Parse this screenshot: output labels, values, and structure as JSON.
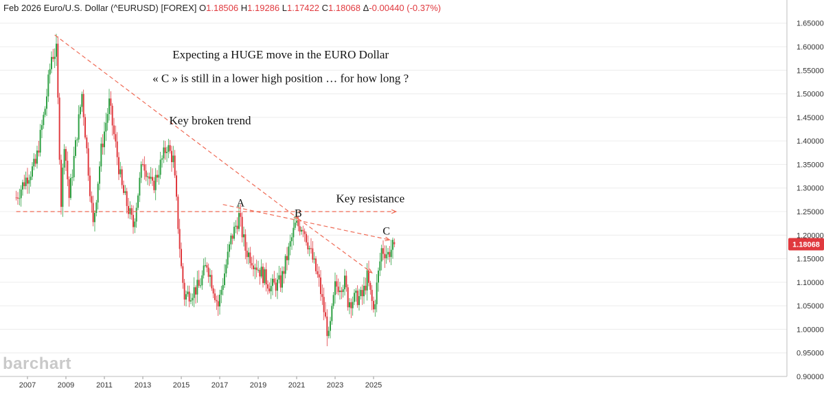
{
  "header": {
    "period": "Feb 2026",
    "symbol": "Euro/U.S. Dollar (^EURUSD) [FOREX]",
    "open_label": "O",
    "open": "1.18506",
    "high_label": "H",
    "high": "1.19286",
    "low_label": "L",
    "low": "1.17422",
    "close_label": "C",
    "close": "1.18068",
    "change_label": "Δ",
    "change": "-0.00440 (-0.37%)"
  },
  "watermark": "barchart",
  "colors": {
    "up": "#2ea043",
    "down": "#e0393e",
    "trend": "#ef6a55",
    "grid": "#ececec",
    "badge": "#e0393e"
  },
  "chart_data": {
    "type": "candlestick",
    "title": "Euro/U.S. Dollar (^EURUSD) [FOREX]",
    "timeframe": "monthly",
    "x_range": [
      "2006-06",
      "2026-02"
    ],
    "ylim": [
      0.9,
      1.67
    ],
    "y_ticks": [
      "1.65000",
      "1.60000",
      "1.55000",
      "1.50000",
      "1.45000",
      "1.40000",
      "1.35000",
      "1.30000",
      "1.25000",
      "1.20000",
      "1.15000",
      "1.10000",
      "1.05000",
      "1.00000",
      "0.95000",
      "0.90000"
    ],
    "y_tick_values": [
      1.65,
      1.6,
      1.55,
      1.5,
      1.45,
      1.4,
      1.35,
      1.3,
      1.25,
      1.2,
      1.15,
      1.1,
      1.05,
      1.0,
      0.95,
      0.9
    ],
    "x_ticks": [
      "2007",
      "2009",
      "2011",
      "2013",
      "2015",
      "2017",
      "2019",
      "2021",
      "2023",
      "2025"
    ],
    "x_tick_dates": [
      "2007-01",
      "2009-01",
      "2011-01",
      "2013-01",
      "2015-01",
      "2017-01",
      "2019-01",
      "2021-01",
      "2023-01",
      "2025-01"
    ],
    "last_price": "1.18068",
    "price_path": [
      [
        "2006-06",
        1.28
      ],
      [
        "2006-12",
        1.32
      ],
      [
        "2007-06",
        1.35
      ],
      [
        "2007-12",
        1.47
      ],
      [
        "2008-04",
        1.58
      ],
      [
        "2008-07",
        1.59
      ],
      [
        "2008-10",
        1.27
      ],
      [
        "2008-12",
        1.4
      ],
      [
        "2009-03",
        1.28
      ],
      [
        "2009-11",
        1.5
      ],
      [
        "2010-06",
        1.22
      ],
      [
        "2010-11",
        1.38
      ],
      [
        "2011-04",
        1.48
      ],
      [
        "2011-12",
        1.3
      ],
      [
        "2012-07",
        1.22
      ],
      [
        "2013-01",
        1.36
      ],
      [
        "2013-07",
        1.3
      ],
      [
        "2014-04",
        1.39
      ],
      [
        "2014-08",
        1.36
      ],
      [
        "2015-01",
        1.13
      ],
      [
        "2015-03",
        1.07
      ],
      [
        "2015-12",
        1.09
      ],
      [
        "2016-05",
        1.14
      ],
      [
        "2016-12",
        1.05
      ],
      [
        "2017-08",
        1.19
      ],
      [
        "2018-01",
        1.24
      ],
      [
        "2018-05",
        1.17
      ],
      [
        "2019-09",
        1.09
      ],
      [
        "2020-03",
        1.1
      ],
      [
        "2020-12",
        1.22
      ],
      [
        "2021-05",
        1.22
      ],
      [
        "2022-03",
        1.1
      ],
      [
        "2022-09",
        0.98
      ],
      [
        "2023-01",
        1.09
      ],
      [
        "2023-07",
        1.1
      ],
      [
        "2023-09",
        1.06
      ],
      [
        "2024-06",
        1.07
      ],
      [
        "2024-09",
        1.11
      ],
      [
        "2025-01",
        1.04
      ],
      [
        "2025-06",
        1.17
      ],
      [
        "2025-10",
        1.16
      ],
      [
        "2026-02",
        1.18
      ]
    ],
    "trendlines": [
      {
        "type": "dashed",
        "from": [
          "2008-06",
          1.625
        ],
        "to": [
          "2021-02",
          1.235
        ]
      },
      {
        "type": "dashed",
        "from": [
          "2021-02",
          1.235
        ],
        "to": [
          "2024-12",
          1.12
        ]
      },
      {
        "type": "dashed",
        "from": [
          "2017-03",
          1.265
        ],
        "to": [
          "2025-11",
          1.19
        ]
      },
      {
        "type": "dashed",
        "from": [
          "2006-06",
          1.25
        ],
        "to": [
          "2026-03",
          1.25
        ]
      }
    ],
    "point_labels": [
      {
        "text": "A",
        "date": "2018-02",
        "price": 1.255
      },
      {
        "text": "B",
        "date": "2021-02",
        "price": 1.233
      },
      {
        "text": "C",
        "date": "2025-09",
        "price": 1.195
      }
    ],
    "annotations": [
      {
        "text": "Expecting a HUGE move in the EURO Dollar",
        "date": "2020-03",
        "price": 1.575
      },
      {
        "text": "« C » is still in a lower high position … for how long ?",
        "date": "2020-03",
        "price": 1.525
      },
      {
        "text": "Key broken trend",
        "date": "2016-07",
        "price": 1.435
      },
      {
        "text": "Key resistance",
        "date": "2024-11",
        "price": 1.27
      }
    ]
  }
}
